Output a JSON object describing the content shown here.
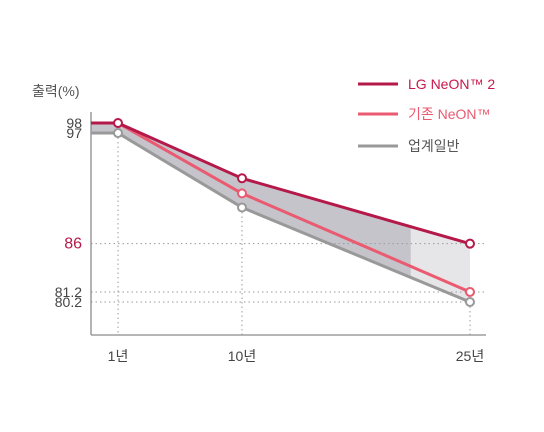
{
  "chart_data": {
    "type": "line",
    "ylabel": "출력(%)",
    "x": [
      "1년",
      "10년",
      "25년"
    ],
    "x_values": [
      1,
      10,
      25
    ],
    "series": [
      {
        "name": "LG NeON™ 2",
        "values": [
          98,
          92.5,
          86
        ],
        "color": "#b5194a"
      },
      {
        "name": "기존 NeON™",
        "values": [
          98,
          91,
          81.2
        ],
        "color": "#ea5a70"
      },
      {
        "name": "업계일반",
        "values": [
          97,
          89.6,
          80.2
        ],
        "color": "#999999"
      }
    ],
    "y_ticks": [
      {
        "label": "98",
        "value": 98
      },
      {
        "label": "97",
        "value": 97
      },
      {
        "label": "86",
        "value": 86,
        "highlight": true
      },
      {
        "label": "81.2",
        "value": 81.2
      },
      {
        "label": "80.2",
        "value": 80.2
      }
    ],
    "ylim": [
      77.8,
      99
    ],
    "grid": "dotted",
    "legend": "top-right",
    "band_colors": {
      "main": "#c5c4cb",
      "light": "#e6e6e9"
    },
    "highlight_color": "#b5194a"
  }
}
